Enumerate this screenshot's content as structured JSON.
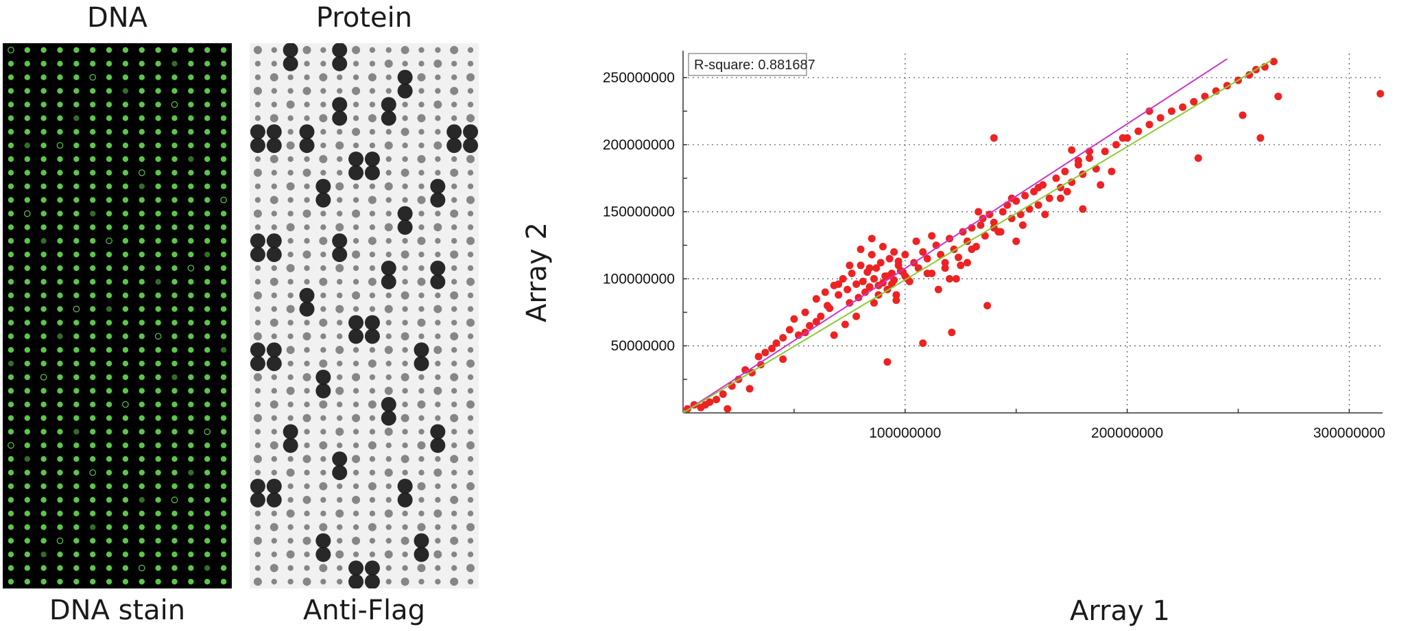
{
  "panels": {
    "dna": {
      "top_label": "DNA",
      "bottom_label": "DNA stain",
      "spot_color": "#5cc64a",
      "background": "#000000"
    },
    "protein": {
      "top_label": "Protein",
      "bottom_label": "Anti-Flag",
      "spot_color": "#1c1c1c",
      "background": "#f1f1f1"
    }
  },
  "chart_data": {
    "type": "scatter",
    "xlabel": "Array 1",
    "ylabel": "Array 2",
    "xlim": [
      0,
      315000000
    ],
    "ylim": [
      0,
      268000000
    ],
    "x_ticks": [
      100000000,
      200000000,
      300000000
    ],
    "x_tick_labels": [
      "100000000",
      "200000000",
      "300000000"
    ],
    "y_ticks": [
      50000000,
      100000000,
      150000000,
      200000000,
      250000000
    ],
    "y_tick_labels": [
      "50000000",
      "100000000",
      "150000000",
      "200000000",
      "250000000"
    ],
    "grid": "dotted",
    "annotation": "R-square: 0.881687",
    "point_color": "#ee2222",
    "fit_lines": [
      {
        "color": "#cc33cc",
        "x": [
          0,
          245000000
        ],
        "y": [
          0,
          264000000
        ]
      },
      {
        "color": "#88cc33",
        "x": [
          0,
          265000000
        ],
        "y": [
          0,
          263000000
        ]
      }
    ],
    "x": [
      2000000,
      5000000,
      8000000,
      12000000,
      15000000,
      18000000,
      22000000,
      25000000,
      28000000,
      31000000,
      34000000,
      37000000,
      40000000,
      42000000,
      45000000,
      48000000,
      50000000,
      52000000,
      55000000,
      57000000,
      60000000,
      62000000,
      64000000,
      66000000,
      68000000,
      70000000,
      72000000,
      74000000,
      75000000,
      76000000,
      78000000,
      79000000,
      80000000,
      81000000,
      82000000,
      83000000,
      84000000,
      85000000,
      86000000,
      87000000,
      88000000,
      89000000,
      90000000,
      91000000,
      92000000,
      93000000,
      94000000,
      95000000,
      96000000,
      97000000,
      98000000,
      100000000,
      102000000,
      104000000,
      106000000,
      108000000,
      110000000,
      112000000,
      114000000,
      116000000,
      118000000,
      120000000,
      122000000,
      124000000,
      126000000,
      128000000,
      130000000,
      132000000,
      134000000,
      136000000,
      138000000,
      140000000,
      142000000,
      144000000,
      146000000,
      148000000,
      150000000,
      152000000,
      154000000,
      156000000,
      158000000,
      160000000,
      162000000,
      165000000,
      168000000,
      170000000,
      172000000,
      175000000,
      178000000,
      180000000,
      183000000,
      186000000,
      190000000,
      195000000,
      200000000,
      205000000,
      210000000,
      215000000,
      220000000,
      225000000,
      230000000,
      235000000,
      240000000,
      245000000,
      250000000,
      255000000,
      258000000,
      262000000,
      266000000,
      60000000,
      65000000,
      70000000,
      75000000,
      80000000,
      85000000,
      90000000,
      95000000,
      100000000,
      105000000,
      110000000,
      115000000,
      120000000,
      125000000,
      130000000,
      135000000,
      140000000,
      150000000,
      160000000,
      170000000,
      180000000,
      88000000,
      92000000,
      96000000,
      99000000,
      101000000,
      86000000,
      84000000,
      94000000,
      97000000,
      78000000,
      73000000,
      68000000,
      112000000,
      118000000,
      123000000,
      128000000,
      133000000,
      143000000,
      148000000,
      153000000,
      163000000,
      173000000,
      178000000,
      183000000,
      188000000,
      193000000,
      35000000,
      45000000,
      55000000,
      10000000,
      20000000,
      30000000,
      92000000,
      108000000,
      121000000,
      137000000,
      198000000,
      232000000,
      260000000,
      314000000,
      210000000,
      252000000,
      268000000,
      175000000,
      140000000
    ],
    "y": [
      3000000,
      6000000,
      4000000,
      8000000,
      10000000,
      14000000,
      20000000,
      25000000,
      32000000,
      30000000,
      42000000,
      45000000,
      48000000,
      52000000,
      56000000,
      62000000,
      70000000,
      58000000,
      75000000,
      65000000,
      85000000,
      72000000,
      90000000,
      78000000,
      95000000,
      88000000,
      100000000,
      92000000,
      82000000,
      104000000,
      96000000,
      86000000,
      110000000,
      98000000,
      90000000,
      105000000,
      94000000,
      118000000,
      100000000,
      108000000,
      88000000,
      112000000,
      97000000,
      102000000,
      92000000,
      115000000,
      104000000,
      99000000,
      84000000,
      110000000,
      106000000,
      102000000,
      98000000,
      112000000,
      108000000,
      120000000,
      115000000,
      104000000,
      125000000,
      118000000,
      112000000,
      130000000,
      122000000,
      116000000,
      135000000,
      128000000,
      138000000,
      124000000,
      140000000,
      132000000,
      148000000,
      142000000,
      135000000,
      150000000,
      155000000,
      145000000,
      158000000,
      148000000,
      162000000,
      152000000,
      165000000,
      155000000,
      170000000,
      160000000,
      175000000,
      168000000,
      180000000,
      172000000,
      185000000,
      178000000,
      190000000,
      182000000,
      195000000,
      200000000,
      205000000,
      210000000,
      215000000,
      220000000,
      225000000,
      228000000,
      232000000,
      236000000,
      240000000,
      244000000,
      248000000,
      252000000,
      256000000,
      258000000,
      262000000,
      68000000,
      80000000,
      96000000,
      110000000,
      122000000,
      130000000,
      124000000,
      120000000,
      118000000,
      128000000,
      104000000,
      92000000,
      100000000,
      110000000,
      122000000,
      145000000,
      138000000,
      128000000,
      168000000,
      160000000,
      152000000,
      95000000,
      102000000,
      88000000,
      105000000,
      100000000,
      82000000,
      108000000,
      96000000,
      113000000,
      72000000,
      66000000,
      58000000,
      132000000,
      108000000,
      100000000,
      112000000,
      150000000,
      135000000,
      160000000,
      140000000,
      148000000,
      165000000,
      188000000,
      195000000,
      170000000,
      180000000,
      36000000,
      40000000,
      60000000,
      6000000,
      3000000,
      18000000,
      38000000,
      52000000,
      60000000,
      80000000,
      205000000,
      190000000,
      205000000,
      238000000,
      225000000,
      222000000,
      236000000,
      196000000,
      205000000
    ]
  }
}
